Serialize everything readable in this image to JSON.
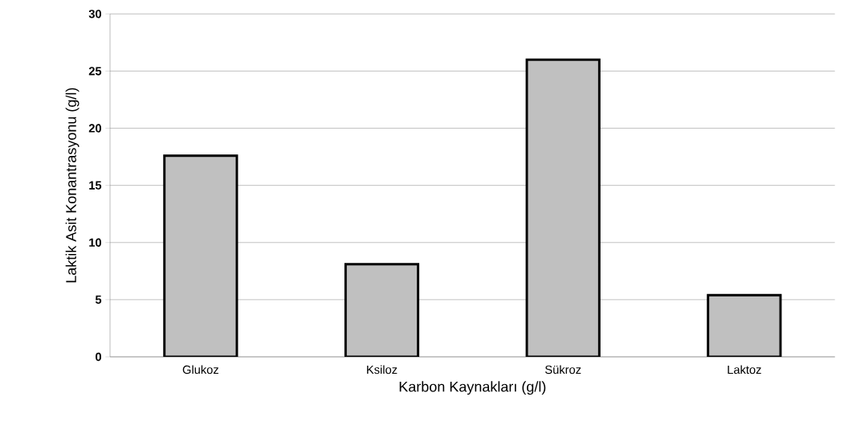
{
  "chart_data": {
    "type": "bar",
    "xlabel": "Karbon Kaynakları (g/l)",
    "ylabel": "Laktik Asit Konantrasyonu (g/l)",
    "categories": [
      "Glukoz",
      "Ksiloz",
      "Sükroz",
      "Laktoz"
    ],
    "values": [
      17.6,
      8.1,
      26.0,
      5.4
    ],
    "color": "#c0c0c0",
    "ylim": [
      0,
      30
    ],
    "yticks": [
      0,
      5,
      10,
      15,
      20,
      25,
      30
    ],
    "grid": "y"
  }
}
